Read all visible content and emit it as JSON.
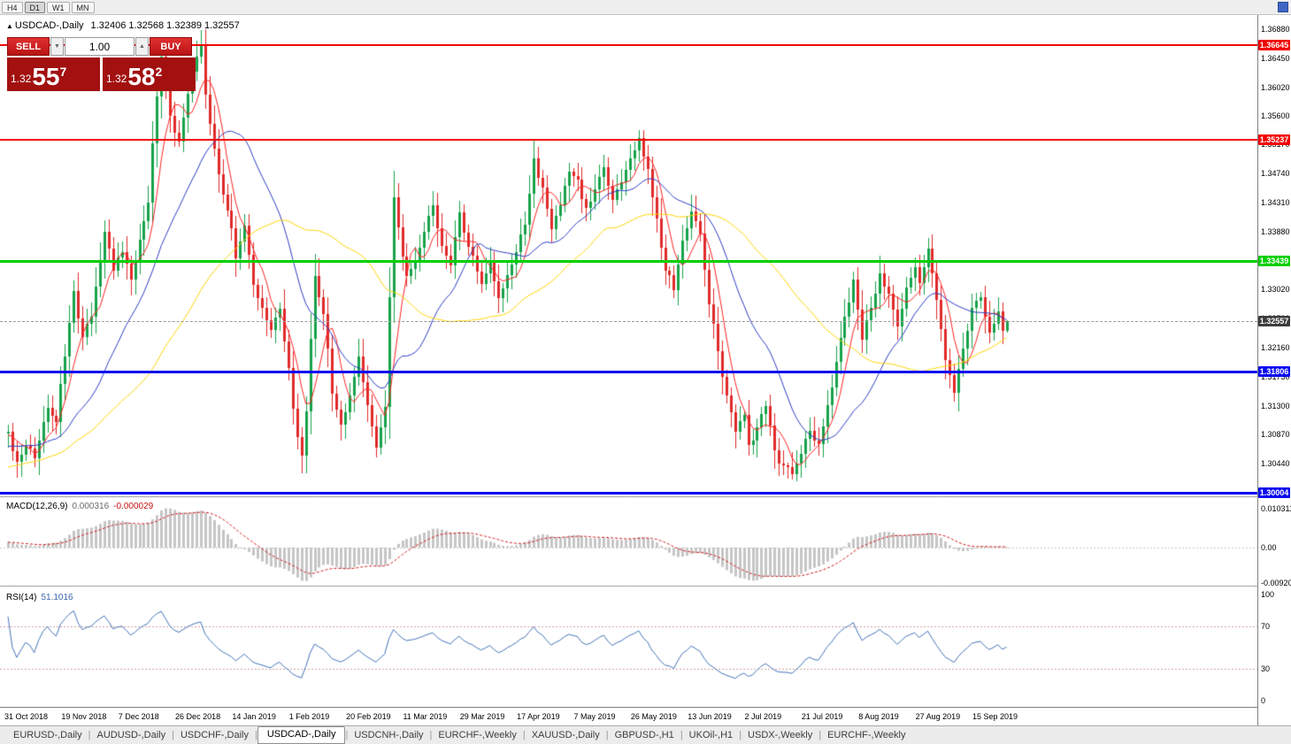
{
  "toolbar": {
    "timeframes": [
      {
        "label": "H4",
        "active": false
      },
      {
        "label": "D1",
        "active": true
      },
      {
        "label": "W1",
        "active": false
      },
      {
        "label": "MN",
        "active": false
      }
    ]
  },
  "chart": {
    "title": {
      "arrow": "▲",
      "symbol": "USDCAD-,Daily",
      "ohlc": "1.32406 1.32568 1.32389 1.32557"
    },
    "trade_panel": {
      "sell_label": "SELL",
      "buy_label": "BUY",
      "volume_value": "1.00",
      "spinner_down": "▼",
      "spinner_up": "▲",
      "bid": {
        "prefix": "1.32",
        "big": "55",
        "sup": "7"
      },
      "ask": {
        "prefix": "1.32",
        "big": "58",
        "sup": "2"
      }
    },
    "price_axis_labels": [
      "1.36880",
      "1.36450",
      "1.36020",
      "1.35600",
      "1.35170",
      "1.34740",
      "1.34310",
      "1.33880",
      "1.33450",
      "1.33020",
      "1.32590",
      "1.32160",
      "1.31730",
      "1.31300",
      "1.30870",
      "1.30440",
      "1.30010"
    ],
    "levels": [
      {
        "value": 1.36645,
        "label": "1.36645",
        "color": "#f20000",
        "thickness": 2
      },
      {
        "value": 1.35237,
        "label": "1.35237",
        "color": "#f20000",
        "thickness": 2
      },
      {
        "value": 1.33439,
        "label": "1.33439",
        "color": "#00cf00",
        "thickness": 3
      },
      {
        "value": 1.31806,
        "label": "1.31806",
        "color": "#0a0af0",
        "thickness": 3
      },
      {
        "value": 1.30004,
        "label": "1.30004",
        "color": "#0a0af0",
        "thickness": 3
      }
    ],
    "current_price": {
      "value": 1.32557,
      "label": "1.32557",
      "badge_color": "#3d3d3d"
    }
  },
  "macd": {
    "label": "MACD(12,26,9)",
    "main_value": "0.000316",
    "signal_value": "-0.000029",
    "axis_labels": [
      {
        "text": "0.010311",
        "value": 0.010311
      },
      {
        "text": "0.00",
        "value": 0
      },
      {
        "text": "-0.00920",
        "value": -0.0092
      }
    ]
  },
  "rsi": {
    "label": "RSI(14)",
    "value": "51.1016",
    "axis_labels": [
      {
        "text": "100",
        "value": 100
      },
      {
        "text": "70",
        "value": 70
      },
      {
        "text": "30",
        "value": 30
      },
      {
        "text": "0",
        "value": 0
      }
    ],
    "levels": [
      70,
      30
    ]
  },
  "tabs": [
    {
      "label": "EURUSD-,Daily",
      "active": false
    },
    {
      "label": "AUDUSD-,Daily",
      "active": false
    },
    {
      "label": "USDCHF-,Daily",
      "active": false
    },
    {
      "label": "USDCAD-,Daily",
      "active": true
    },
    {
      "label": "USDCNH-,Daily",
      "active": false
    },
    {
      "label": "EURCHF-,Weekly",
      "active": false
    },
    {
      "label": "XAUUSD-,Daily",
      "active": false
    },
    {
      "label": "GBPUSD-,H1",
      "active": false
    },
    {
      "label": "UKOil-,H1",
      "active": false
    },
    {
      "label": "USDX-,Weekly",
      "active": false
    },
    {
      "label": "EURCHF-,Weekly",
      "active": false
    }
  ],
  "colors": {
    "bull": "#17a24a",
    "bear": "#e12a2a",
    "macd_hist": "#c6c6c6",
    "macd_signal": "#cf1d1d",
    "rsi_line": "#4273b9",
    "rsi_level_dash": "#cf9f9f",
    "separator": "#9a9a9a"
  },
  "chart_data": {
    "type": "candlestick",
    "symbol": "USDCAD",
    "timeframe": "Daily",
    "current_ohlc": {
      "open": 1.32406,
      "high": 1.32568,
      "low": 1.32389,
      "close": 1.32557
    },
    "y_axis": {
      "top_label": 1.3688,
      "bottom_label": 1.3001,
      "tick_step": 0.0043
    },
    "x_axis": {
      "bars_total": 229,
      "bars_per_label": 13,
      "date_labels": [
        "31 Oct 2018",
        "19 Nov 2018",
        "7 Dec 2018",
        "26 Dec 2018",
        "14 Jan 2019",
        "1 Feb 2019",
        "20 Feb 2019",
        "11 Mar 2019",
        "29 Mar 2019",
        "17 Apr 2019",
        "7 May 2019",
        "26 May 2019",
        "13 Jun 2019",
        "2 Jul 2019",
        "21 Jul 2019",
        "8 Aug 2019",
        "27 Aug 2019",
        "15 Sep 2019"
      ]
    },
    "horizontal_levels": [
      1.36645,
      1.35237,
      1.33439,
      1.31806,
      1.30004
    ],
    "moving_averages": [
      {
        "period": 6,
        "color": "#ff2222"
      },
      {
        "period": 21,
        "color": "#2c3cc4"
      },
      {
        "period": 50,
        "color": "#ffd400"
      }
    ],
    "indicators": {
      "macd": {
        "fast": 12,
        "slow": 26,
        "signal": 9,
        "last_main": 0.000316,
        "last_signal": -2.9e-05,
        "scale_top": 0.010311,
        "scale_bottom": -0.0092
      },
      "rsi": {
        "period": 14,
        "last": 51.1016,
        "levels": [
          70,
          30
        ]
      }
    },
    "prepad": {
      "bars": 50,
      "start_price": 1.2985
    },
    "close_waypoints": [
      [
        0,
        1.309
      ],
      [
        2,
        1.3048
      ],
      [
        4,
        1.3072
      ],
      [
        6,
        1.3056
      ],
      [
        9,
        1.3128
      ],
      [
        11,
        1.3108
      ],
      [
        13,
        1.3208
      ],
      [
        15,
        1.33
      ],
      [
        16,
        1.3265
      ],
      [
        17,
        1.3232
      ],
      [
        19,
        1.3268
      ],
      [
        22,
        1.3385
      ],
      [
        24,
        1.333
      ],
      [
        26,
        1.3362
      ],
      [
        28,
        1.3318
      ],
      [
        30,
        1.3375
      ],
      [
        32,
        1.3435
      ],
      [
        34,
        1.359
      ],
      [
        35,
        1.3648
      ],
      [
        37,
        1.3555
      ],
      [
        39,
        1.3525
      ],
      [
        41,
        1.3595
      ],
      [
        43,
        1.3648
      ],
      [
        44,
        1.3662
      ],
      [
        45,
        1.3585
      ],
      [
        47,
        1.3505
      ],
      [
        49,
        1.3448
      ],
      [
        51,
        1.3398
      ],
      [
        52,
        1.3345
      ],
      [
        54,
        1.3398
      ],
      [
        56,
        1.3305
      ],
      [
        58,
        1.3272
      ],
      [
        60,
        1.3245
      ],
      [
        62,
        1.3272
      ],
      [
        64,
        1.318
      ],
      [
        66,
        1.3078
      ],
      [
        67,
        1.3052
      ],
      [
        68,
        1.312
      ],
      [
        69,
        1.323
      ],
      [
        70,
        1.3322
      ],
      [
        72,
        1.3268
      ],
      [
        74,
        1.3152
      ],
      [
        76,
        1.3098
      ],
      [
        78,
        1.3142
      ],
      [
        80,
        1.3202
      ],
      [
        82,
        1.3132
      ],
      [
        84,
        1.3068
      ],
      [
        86,
        1.3125
      ],
      [
        87,
        1.3295
      ],
      [
        88,
        1.3445
      ],
      [
        90,
        1.3352
      ],
      [
        91,
        1.3325
      ],
      [
        93,
        1.3342
      ],
      [
        95,
        1.3392
      ],
      [
        97,
        1.3432
      ],
      [
        99,
        1.3362
      ],
      [
        101,
        1.3332
      ],
      [
        103,
        1.3422
      ],
      [
        104,
        1.3382
      ],
      [
        106,
        1.3352
      ],
      [
        108,
        1.3312
      ],
      [
        110,
        1.3342
      ],
      [
        112,
        1.3295
      ],
      [
        114,
        1.3322
      ],
      [
        116,
        1.3355
      ],
      [
        118,
        1.3402
      ],
      [
        120,
        1.3492
      ],
      [
        122,
        1.3452
      ],
      [
        124,
        1.3392
      ],
      [
        126,
        1.3432
      ],
      [
        128,
        1.3472
      ],
      [
        130,
        1.3462
      ],
      [
        132,
        1.3422
      ],
      [
        134,
        1.3452
      ],
      [
        136,
        1.3482
      ],
      [
        138,
        1.3432
      ],
      [
        140,
        1.3462
      ],
      [
        142,
        1.3495
      ],
      [
        144,
        1.3532
      ],
      [
        146,
        1.3475
      ],
      [
        148,
        1.3405
      ],
      [
        150,
        1.3335
      ],
      [
        152,
        1.3302
      ],
      [
        154,
        1.3372
      ],
      [
        156,
        1.3422
      ],
      [
        158,
        1.3382
      ],
      [
        160,
        1.3285
      ],
      [
        162,
        1.3205
      ],
      [
        164,
        1.3145
      ],
      [
        166,
        1.3092
      ],
      [
        168,
        1.3115
      ],
      [
        169,
        1.3065
      ],
      [
        171,
        1.3092
      ],
      [
        173,
        1.3132
      ],
      [
        175,
        1.3062
      ],
      [
        177,
        1.3038
      ],
      [
        179,
        1.3028
      ],
      [
        181,
        1.3062
      ],
      [
        183,
        1.3092
      ],
      [
        185,
        1.3072
      ],
      [
        187,
        1.3132
      ],
      [
        189,
        1.3192
      ],
      [
        191,
        1.3262
      ],
      [
        193,
        1.3312
      ],
      [
        195,
        1.3232
      ],
      [
        197,
        1.3272
      ],
      [
        199,
        1.3322
      ],
      [
        201,
        1.3292
      ],
      [
        203,
        1.3242
      ],
      [
        205,
        1.3302
      ],
      [
        207,
        1.3332
      ],
      [
        208,
        1.3312
      ],
      [
        210,
        1.3358
      ],
      [
        212,
        1.3282
      ],
      [
        214,
        1.3192
      ],
      [
        216,
        1.3152
      ],
      [
        218,
        1.3212
      ],
      [
        220,
        1.3272
      ],
      [
        222,
        1.3292
      ],
      [
        224,
        1.3242
      ],
      [
        226,
        1.3272
      ],
      [
        227,
        1.3241
      ],
      [
        228,
        1.32557
      ]
    ]
  }
}
